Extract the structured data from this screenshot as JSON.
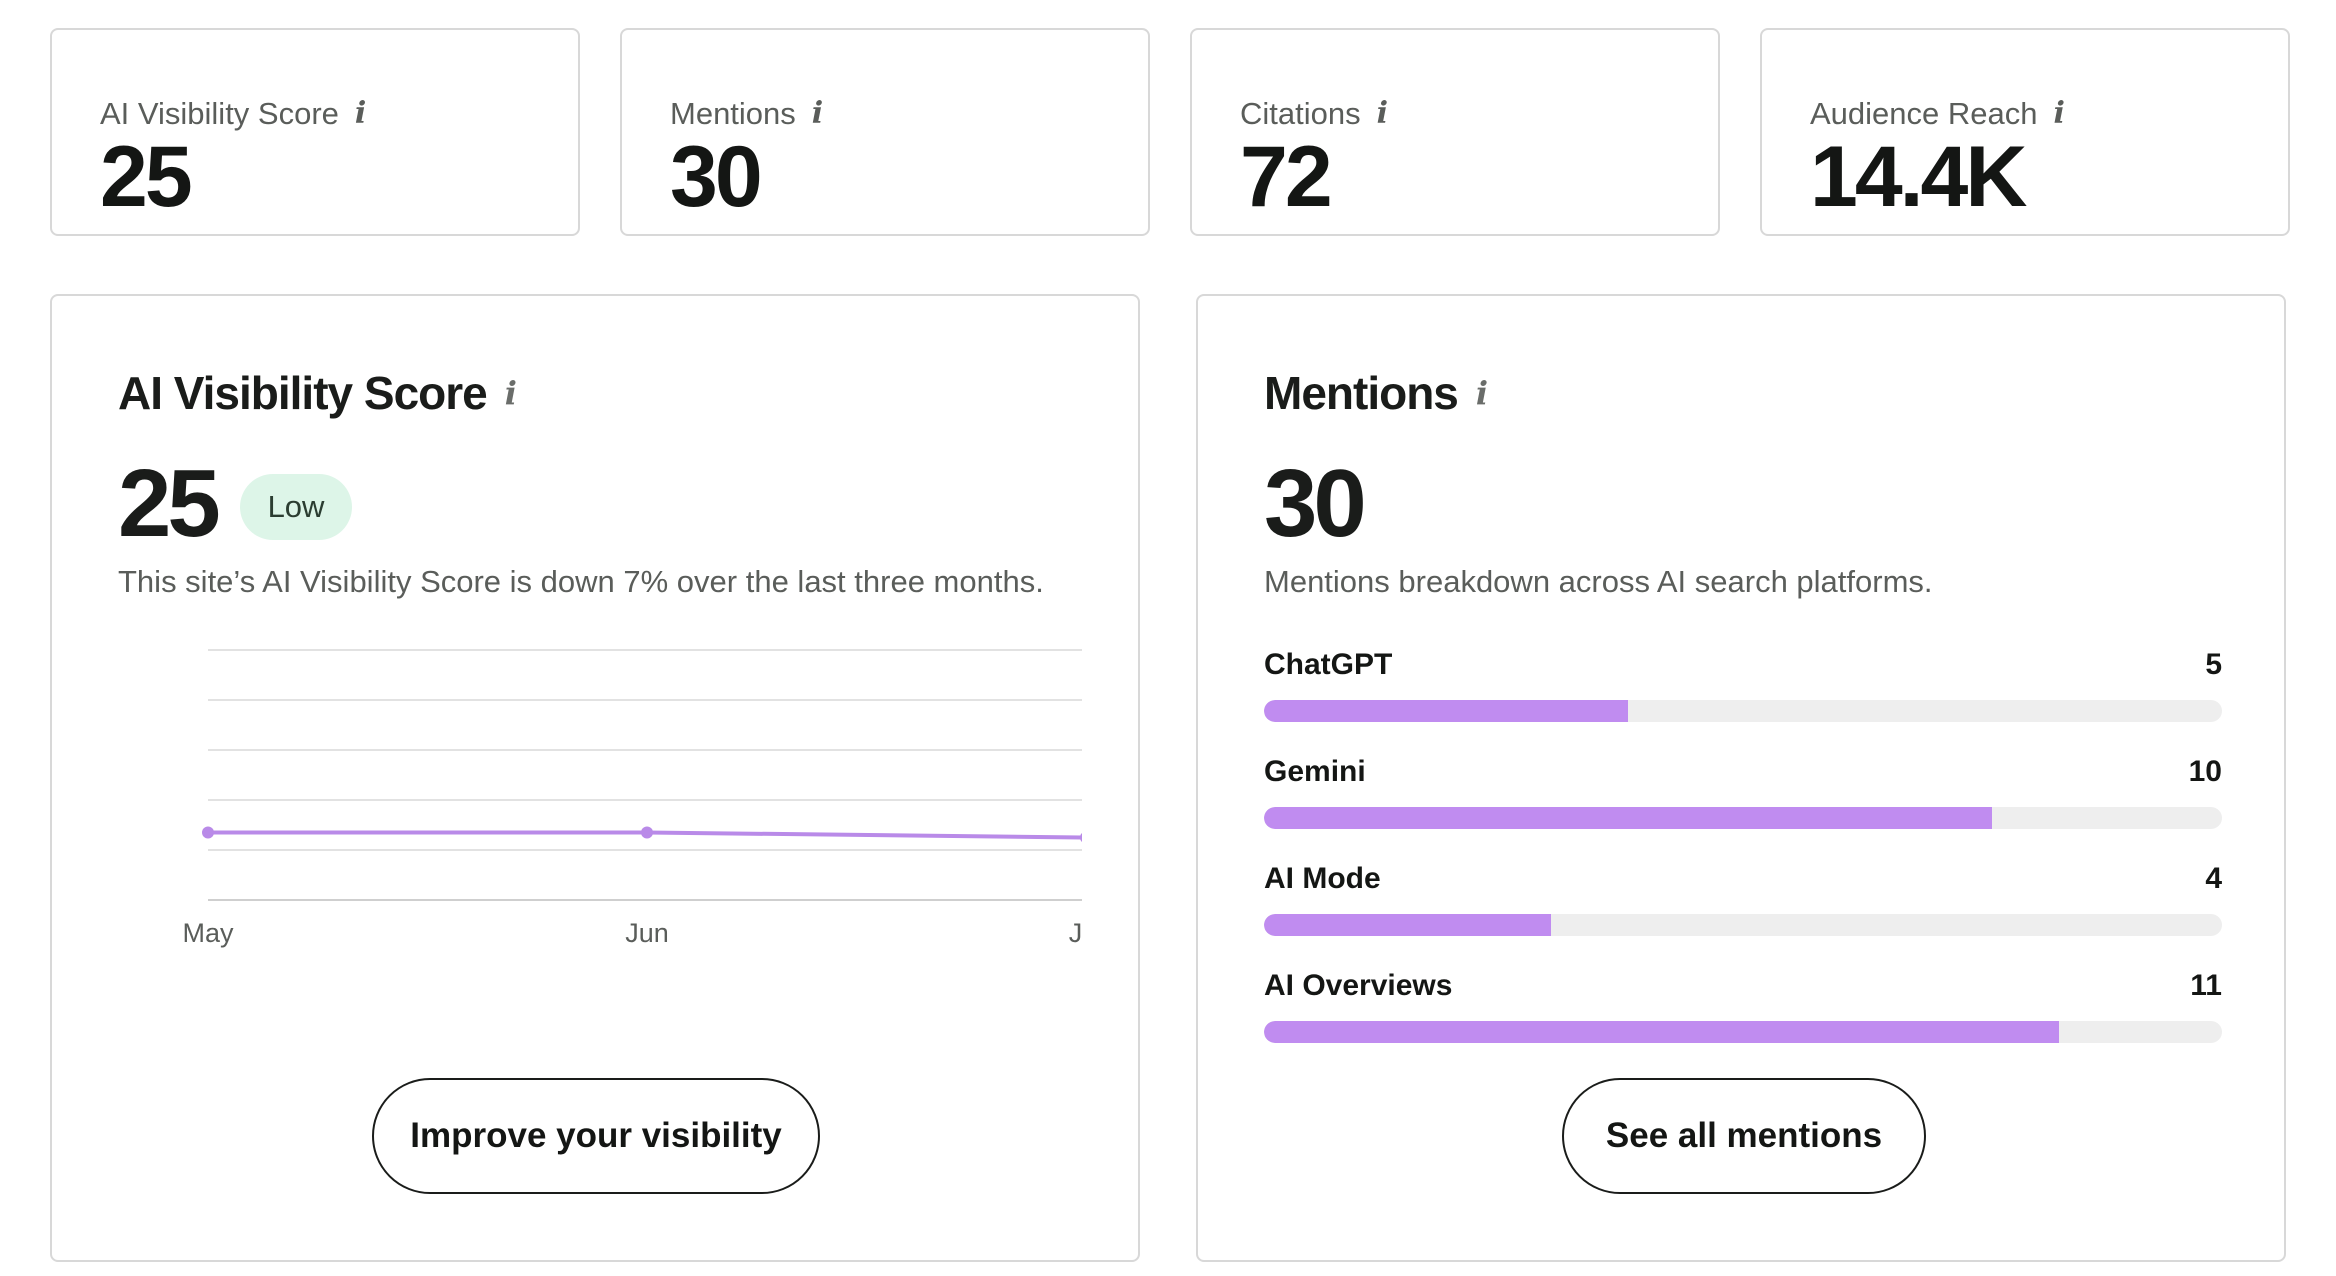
{
  "kpis": [
    {
      "label": "AI Visibility Score",
      "value": "25"
    },
    {
      "label": "Mentions",
      "value": "30"
    },
    {
      "label": "Citations",
      "value": "72"
    },
    {
      "label": "Audience Reach",
      "value": "14.4K"
    }
  ],
  "visibility_panel": {
    "title": "AI Visibility Score",
    "value": "25",
    "badge": "Low",
    "description": "This site’s AI Visibility Score is down 7% over the last three months.",
    "button_label": "Improve your visibility"
  },
  "mentions_panel": {
    "title": "Mentions",
    "value": "30",
    "description": "Mentions breakdown across AI search platforms.",
    "platforms": [
      {
        "name": "ChatGPT",
        "count": "5",
        "fraction": 0.38
      },
      {
        "name": "Gemini",
        "count": "10",
        "fraction": 0.76
      },
      {
        "name": "AI Mode",
        "count": "4",
        "fraction": 0.3
      },
      {
        "name": "AI Overviews",
        "count": "11",
        "fraction": 0.83
      }
    ],
    "button_label": "See all mentions"
  },
  "chart_data": {
    "type": "line",
    "categories": [
      "May",
      "Jun",
      "Jul"
    ],
    "series": [
      {
        "values": [
          27,
          27,
          25
        ]
      }
    ],
    "ylim": [
      0,
      100
    ],
    "grid": true,
    "color": "#b98ae8"
  }
}
